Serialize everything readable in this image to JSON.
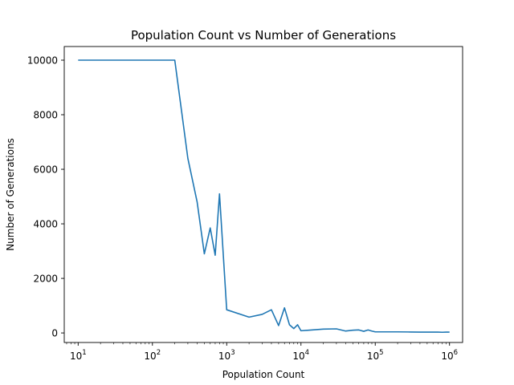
{
  "chart_data": {
    "type": "line",
    "title": "Population Count vs Number of Generations",
    "xlabel": "Population Count",
    "ylabel": "Number of Generations",
    "xscale": "log",
    "xlim": [
      6.5,
      1500000
    ],
    "ylim": [
      -350,
      10500
    ],
    "grid": false,
    "x_ticks": [
      {
        "value": 10,
        "base": "10",
        "exp": "1"
      },
      {
        "value": 100,
        "base": "10",
        "exp": "2"
      },
      {
        "value": 1000,
        "base": "10",
        "exp": "3"
      },
      {
        "value": 10000,
        "base": "10",
        "exp": "4"
      },
      {
        "value": 100000,
        "base": "10",
        "exp": "5"
      },
      {
        "value": 1000000,
        "base": "10",
        "exp": "6"
      }
    ],
    "y_ticks": [
      0,
      2000,
      4000,
      6000,
      8000,
      10000
    ],
    "series": [
      {
        "color": "#1f77b4",
        "x": [
          10,
          20,
          50,
          100,
          200,
          300,
          400,
          500,
          600,
          700,
          800,
          1000,
          2000,
          3000,
          4000,
          5000,
          6000,
          7000,
          8000,
          9000,
          10000,
          20000,
          30000,
          40000,
          50000,
          60000,
          70000,
          80000,
          90000,
          100000,
          200000,
          300000,
          400000,
          500000,
          600000,
          700000,
          800000,
          900000,
          1000000
        ],
        "y": [
          10000,
          10000,
          10000,
          10000,
          10000,
          6400,
          4800,
          2900,
          3850,
          2850,
          5100,
          850,
          580,
          680,
          850,
          270,
          920,
          300,
          160,
          300,
          80,
          140,
          150,
          70,
          100,
          110,
          60,
          110,
          70,
          40,
          40,
          35,
          30,
          30,
          30,
          30,
          25,
          30,
          30
        ]
      }
    ]
  }
}
